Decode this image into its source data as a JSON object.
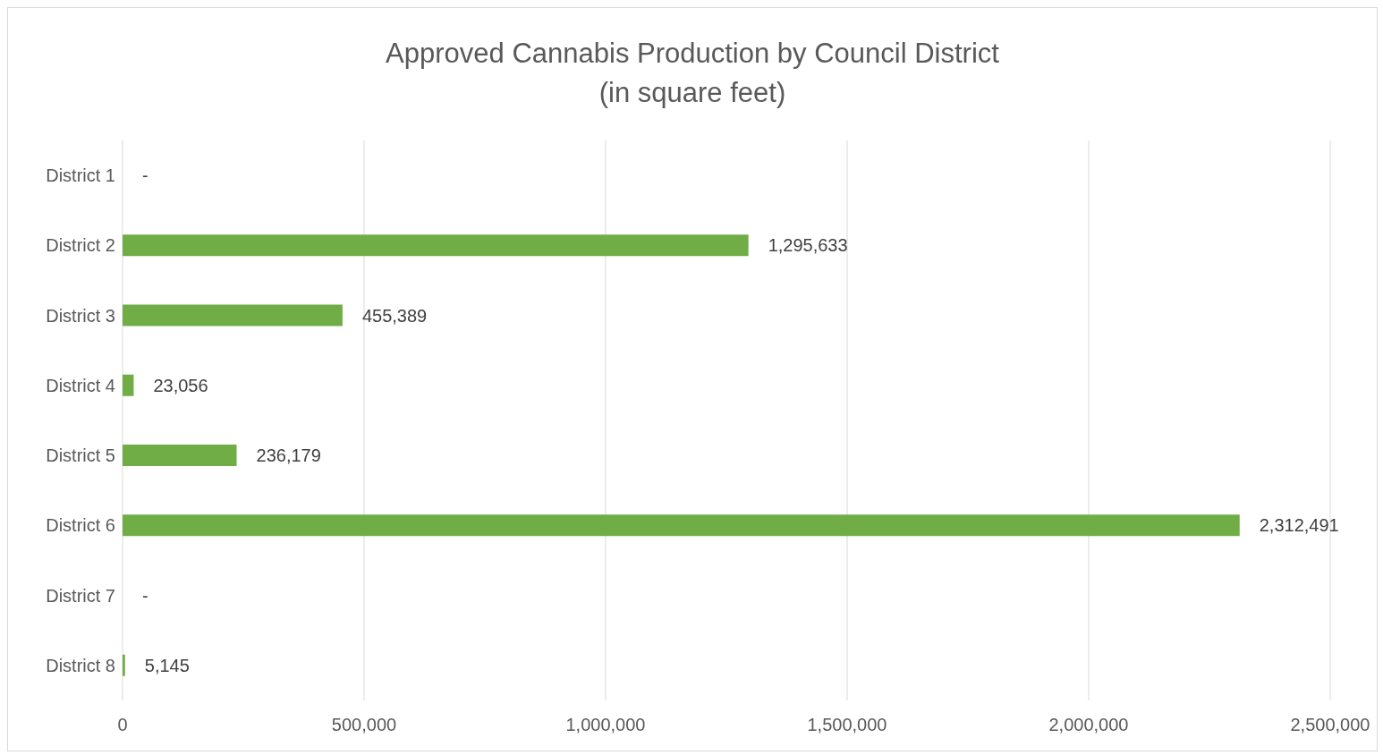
{
  "chart_data": {
    "type": "bar",
    "orientation": "horizontal",
    "title": "Approved Cannabis Production by Council District\n(in square feet)",
    "categories": [
      "District 1",
      "District 2",
      "District 3",
      "District 4",
      "District 5",
      "District 6",
      "District 7",
      "District 8"
    ],
    "values": [
      0,
      1295633,
      455389,
      23056,
      236179,
      2312491,
      0,
      5145
    ],
    "value_labels": [
      "-",
      "1,295,633",
      "455,389",
      "23,056",
      "236,179",
      "2,312,491",
      "-",
      "5,145"
    ],
    "color": "#70ad47",
    "xlim": [
      0,
      2500000
    ],
    "xticks": [
      0,
      {
        "value": 500000,
        "label": "500,000"
      },
      {
        "value": 1000000,
        "label": "1,000,000"
      },
      {
        "value": 1500000,
        "label": "1,500,000"
      },
      {
        "value": 2000000,
        "label": "2,000,000"
      },
      {
        "value": 2500000,
        "label": "2,500,000"
      }
    ],
    "grid": "x",
    "legend": false
  }
}
